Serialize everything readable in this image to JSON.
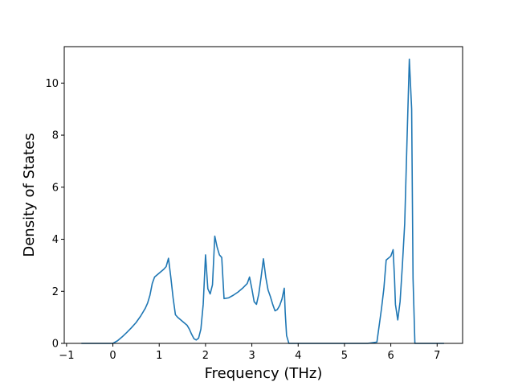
{
  "chart_data": {
    "type": "line",
    "title": "",
    "xlabel": "Frequency (THz)",
    "ylabel": "Density of States",
    "xlim": [
      -1.05,
      7.55
    ],
    "ylim": [
      0,
      11.4
    ],
    "xticks": [
      -1,
      0,
      1,
      2,
      3,
      4,
      5,
      6,
      7
    ],
    "yticks": [
      0,
      2,
      4,
      6,
      8,
      10
    ],
    "grid": false,
    "line_color": "#1f77b4",
    "series": [
      {
        "x": [
          -0.68,
          -0.3,
          0.0,
          0.1,
          0.2,
          0.3,
          0.4,
          0.5,
          0.6,
          0.7,
          0.75,
          0.8,
          0.85,
          0.9,
          1.0,
          1.1,
          1.15,
          1.2,
          1.25,
          1.3,
          1.35,
          1.4,
          1.5,
          1.6,
          1.65,
          1.7,
          1.75,
          1.8,
          1.85,
          1.9,
          1.95,
          2.0,
          2.05,
          2.1,
          2.15,
          2.2,
          2.25,
          2.3,
          2.35,
          2.4,
          2.5,
          2.6,
          2.7,
          2.8,
          2.9,
          2.95,
          3.0,
          3.05,
          3.1,
          3.15,
          3.2,
          3.25,
          3.3,
          3.35,
          3.4,
          3.45,
          3.5,
          3.55,
          3.6,
          3.65,
          3.7,
          3.72,
          3.75,
          3.8,
          4.5,
          5.0,
          5.5,
          5.7,
          5.75,
          5.8,
          5.85,
          5.9,
          6.0,
          6.05,
          6.08,
          6.1,
          6.15,
          6.2,
          6.25,
          6.3,
          6.35,
          6.4,
          6.45,
          6.48,
          6.52,
          6.55,
          7.15
        ],
        "y": [
          0.0,
          0.0,
          0.0,
          0.1,
          0.25,
          0.42,
          0.6,
          0.8,
          1.05,
          1.35,
          1.55,
          1.85,
          2.3,
          2.55,
          2.7,
          2.85,
          2.95,
          3.27,
          2.55,
          1.75,
          1.1,
          1.0,
          0.85,
          0.7,
          0.55,
          0.35,
          0.18,
          0.13,
          0.2,
          0.55,
          1.5,
          3.4,
          2.1,
          1.9,
          2.25,
          4.12,
          3.7,
          3.4,
          3.3,
          1.72,
          1.75,
          1.85,
          1.97,
          2.12,
          2.3,
          2.55,
          2.1,
          1.6,
          1.5,
          1.9,
          2.55,
          3.25,
          2.55,
          2.05,
          1.8,
          1.5,
          1.25,
          1.3,
          1.45,
          1.7,
          2.12,
          1.2,
          0.3,
          0.0,
          0.0,
          0.0,
          0.0,
          0.05,
          0.7,
          1.35,
          2.1,
          3.2,
          3.35,
          3.6,
          2.5,
          1.5,
          0.9,
          1.6,
          3.0,
          4.6,
          7.8,
          10.92,
          9.0,
          2.5,
          0.0,
          0.0,
          0.0
        ]
      }
    ]
  }
}
